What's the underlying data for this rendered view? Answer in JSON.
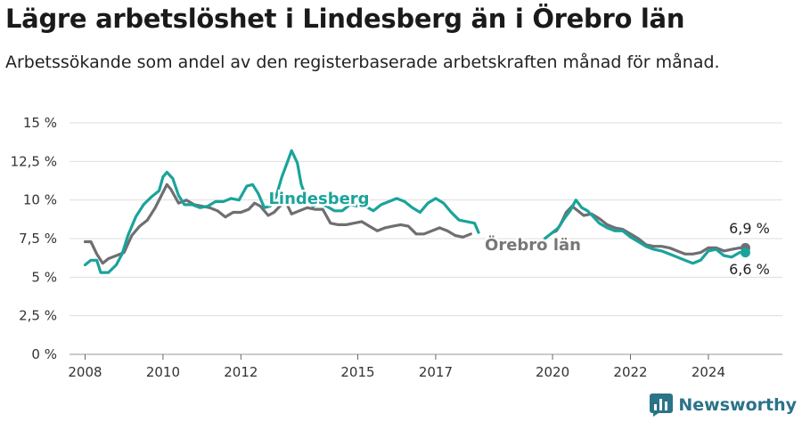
{
  "header": {
    "title": "Lägre arbetslöshet i Lindesberg än i Örebro län",
    "subtitle": "Arbetssökande som andel av den registerbaserade arbetskraften månad för månad."
  },
  "branding": {
    "name": "Newsworthy",
    "logo_icon": "bar-chart-logo-icon",
    "color": "#2b7388"
  },
  "chart_data": {
    "type": "line",
    "title": "Lägre arbetslöshet i Lindesberg än i Örebro län",
    "subtitle": "Arbetssökande som andel av den registerbaserade arbetskraften månad för månad.",
    "xlabel": "",
    "ylabel": "",
    "y_unit": "%",
    "ylim": [
      0,
      15
    ],
    "y_ticks": [
      0,
      2.5,
      5,
      7.5,
      10,
      12.5,
      15
    ],
    "y_tick_labels": [
      "0 %",
      "2,5 %",
      "5 %",
      "7,5 %",
      "10 %",
      "12,5 %",
      "15 %"
    ],
    "xlim": [
      2007.6,
      2025.9
    ],
    "x_ticks": [
      2008,
      2010,
      2012,
      2015,
      2017,
      2020,
      2022,
      2024
    ],
    "x_tick_labels": [
      "2008",
      "2010",
      "2012",
      "2015",
      "2017",
      "2020",
      "2022",
      "2024"
    ],
    "grid": "horizontal",
    "legend": "direct labels on lines",
    "gap": [
      2018.1,
      2019.8
    ],
    "series": [
      {
        "name": "Örebro län",
        "color": "#6e6e73",
        "end_label": "6,9 %",
        "points": [
          [
            2008.0,
            7.3
          ],
          [
            2008.15,
            7.3
          ],
          [
            2008.3,
            6.5
          ],
          [
            2008.45,
            5.9
          ],
          [
            2008.6,
            6.2
          ],
          [
            2008.8,
            6.4
          ],
          [
            2009.0,
            6.6
          ],
          [
            2009.2,
            7.7
          ],
          [
            2009.4,
            8.3
          ],
          [
            2009.6,
            8.7
          ],
          [
            2009.8,
            9.5
          ],
          [
            2010.0,
            10.5
          ],
          [
            2010.1,
            11.0
          ],
          [
            2010.2,
            10.7
          ],
          [
            2010.4,
            9.8
          ],
          [
            2010.6,
            10.0
          ],
          [
            2010.8,
            9.7
          ],
          [
            2011.0,
            9.6
          ],
          [
            2011.2,
            9.5
          ],
          [
            2011.4,
            9.3
          ],
          [
            2011.6,
            8.9
          ],
          [
            2011.8,
            9.2
          ],
          [
            2012.0,
            9.2
          ],
          [
            2012.2,
            9.4
          ],
          [
            2012.35,
            9.8
          ],
          [
            2012.5,
            9.6
          ],
          [
            2012.7,
            9.0
          ],
          [
            2012.85,
            9.2
          ],
          [
            2013.0,
            9.6
          ],
          [
            2013.15,
            9.9
          ],
          [
            2013.3,
            9.1
          ],
          [
            2013.5,
            9.3
          ],
          [
            2013.7,
            9.5
          ],
          [
            2013.9,
            9.4
          ],
          [
            2014.1,
            9.4
          ],
          [
            2014.3,
            8.5
          ],
          [
            2014.5,
            8.4
          ],
          [
            2014.7,
            8.4
          ],
          [
            2014.9,
            8.5
          ],
          [
            2015.1,
            8.6
          ],
          [
            2015.3,
            8.3
          ],
          [
            2015.5,
            8.0
          ],
          [
            2015.7,
            8.2
          ],
          [
            2015.9,
            8.3
          ],
          [
            2016.1,
            8.4
          ],
          [
            2016.3,
            8.3
          ],
          [
            2016.5,
            7.8
          ],
          [
            2016.7,
            7.8
          ],
          [
            2016.9,
            8.0
          ],
          [
            2017.1,
            8.2
          ],
          [
            2017.3,
            8.0
          ],
          [
            2017.5,
            7.7
          ],
          [
            2017.7,
            7.6
          ],
          [
            2017.9,
            7.8
          ],
          [
            2020.0,
            7.9
          ],
          [
            2020.1,
            8.0
          ],
          [
            2020.2,
            8.4
          ],
          [
            2020.35,
            9.2
          ],
          [
            2020.5,
            9.6
          ],
          [
            2020.65,
            9.3
          ],
          [
            2020.8,
            9.0
          ],
          [
            2021.0,
            9.1
          ],
          [
            2021.2,
            8.8
          ],
          [
            2021.4,
            8.4
          ],
          [
            2021.6,
            8.2
          ],
          [
            2021.8,
            8.1
          ],
          [
            2022.0,
            7.8
          ],
          [
            2022.2,
            7.5
          ],
          [
            2022.4,
            7.1
          ],
          [
            2022.6,
            7.0
          ],
          [
            2022.8,
            7.0
          ],
          [
            2023.0,
            6.9
          ],
          [
            2023.2,
            6.7
          ],
          [
            2023.4,
            6.5
          ],
          [
            2023.6,
            6.5
          ],
          [
            2023.8,
            6.6
          ],
          [
            2024.0,
            6.9
          ],
          [
            2024.2,
            6.9
          ],
          [
            2024.4,
            6.7
          ],
          [
            2024.6,
            6.8
          ],
          [
            2024.8,
            6.9
          ],
          [
            2024.95,
            6.9
          ]
        ]
      },
      {
        "name": "Lindesberg",
        "color": "#1aa39b",
        "end_label": "6,6 %",
        "points": [
          [
            2008.0,
            5.8
          ],
          [
            2008.15,
            6.1
          ],
          [
            2008.3,
            6.1
          ],
          [
            2008.4,
            5.3
          ],
          [
            2008.6,
            5.3
          ],
          [
            2008.8,
            5.8
          ],
          [
            2008.95,
            6.5
          ],
          [
            2009.1,
            7.7
          ],
          [
            2009.3,
            8.9
          ],
          [
            2009.5,
            9.7
          ],
          [
            2009.7,
            10.2
          ],
          [
            2009.9,
            10.6
          ],
          [
            2010.0,
            11.5
          ],
          [
            2010.1,
            11.8
          ],
          [
            2010.25,
            11.4
          ],
          [
            2010.4,
            10.3
          ],
          [
            2010.55,
            9.7
          ],
          [
            2010.75,
            9.7
          ],
          [
            2010.95,
            9.5
          ],
          [
            2011.15,
            9.6
          ],
          [
            2011.35,
            9.9
          ],
          [
            2011.55,
            9.9
          ],
          [
            2011.75,
            10.1
          ],
          [
            2011.95,
            10.0
          ],
          [
            2012.15,
            10.9
          ],
          [
            2012.3,
            11.0
          ],
          [
            2012.45,
            10.4
          ],
          [
            2012.6,
            9.5
          ],
          [
            2012.75,
            9.6
          ],
          [
            2012.9,
            10.2
          ],
          [
            2013.05,
            11.5
          ],
          [
            2013.2,
            12.5
          ],
          [
            2013.3,
            13.2
          ],
          [
            2013.45,
            12.4
          ],
          [
            2013.55,
            11.0
          ],
          [
            2013.7,
            10.0
          ],
          [
            2013.85,
            9.6
          ],
          [
            2014.0,
            9.8
          ],
          [
            2014.2,
            9.6
          ],
          [
            2014.4,
            9.3
          ],
          [
            2014.6,
            9.3
          ],
          [
            2014.8,
            9.7
          ],
          [
            2015.0,
            9.6
          ],
          [
            2015.2,
            9.6
          ],
          [
            2015.4,
            9.3
          ],
          [
            2015.6,
            9.7
          ],
          [
            2015.8,
            9.9
          ],
          [
            2016.0,
            10.1
          ],
          [
            2016.2,
            9.9
          ],
          [
            2016.4,
            9.5
          ],
          [
            2016.6,
            9.2
          ],
          [
            2016.8,
            9.8
          ],
          [
            2017.0,
            10.1
          ],
          [
            2017.2,
            9.8
          ],
          [
            2017.4,
            9.2
          ],
          [
            2017.6,
            8.7
          ],
          [
            2017.8,
            8.6
          ],
          [
            2018.0,
            8.5
          ],
          [
            2018.1,
            7.9
          ],
          [
            2019.8,
            7.5
          ],
          [
            2020.0,
            7.9
          ],
          [
            2020.15,
            8.2
          ],
          [
            2020.3,
            8.8
          ],
          [
            2020.45,
            9.3
          ],
          [
            2020.6,
            10.0
          ],
          [
            2020.75,
            9.5
          ],
          [
            2020.9,
            9.3
          ],
          [
            2021.05,
            8.9
          ],
          [
            2021.2,
            8.5
          ],
          [
            2021.4,
            8.2
          ],
          [
            2021.6,
            8.0
          ],
          [
            2021.8,
            8.0
          ],
          [
            2022.0,
            7.6
          ],
          [
            2022.2,
            7.3
          ],
          [
            2022.4,
            7.0
          ],
          [
            2022.6,
            6.8
          ],
          [
            2022.8,
            6.7
          ],
          [
            2023.0,
            6.5
          ],
          [
            2023.2,
            6.3
          ],
          [
            2023.4,
            6.1
          ],
          [
            2023.6,
            5.9
          ],
          [
            2023.8,
            6.1
          ],
          [
            2024.0,
            6.7
          ],
          [
            2024.2,
            6.8
          ],
          [
            2024.4,
            6.4
          ],
          [
            2024.6,
            6.3
          ],
          [
            2024.8,
            6.6
          ],
          [
            2024.95,
            6.6
          ]
        ]
      }
    ]
  }
}
